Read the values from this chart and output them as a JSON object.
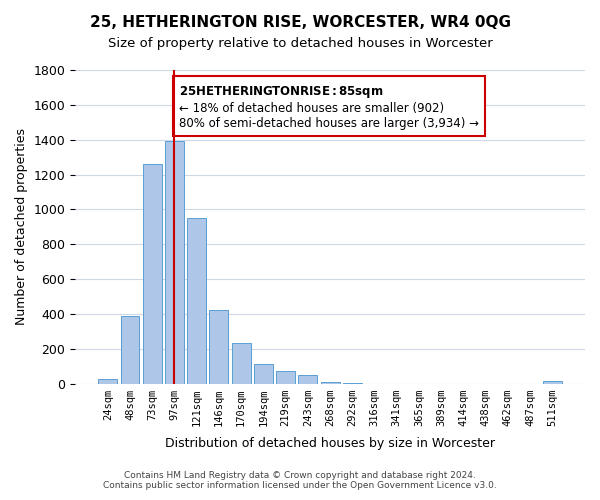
{
  "title": "25, HETHERINGTON RISE, WORCESTER, WR4 0QG",
  "subtitle": "Size of property relative to detached houses in Worcester",
  "xlabel": "Distribution of detached houses by size in Worcester",
  "ylabel": "Number of detached properties",
  "bar_labels": [
    "24sqm",
    "48sqm",
    "73sqm",
    "97sqm",
    "121sqm",
    "146sqm",
    "170sqm",
    "194sqm",
    "219sqm",
    "243sqm",
    "268sqm",
    "292sqm",
    "316sqm",
    "341sqm",
    "365sqm",
    "389sqm",
    "414sqm",
    "438sqm",
    "462sqm",
    "487sqm",
    "511sqm"
  ],
  "bar_values": [
    25,
    390,
    1260,
    1390,
    950,
    420,
    235,
    110,
    70,
    50,
    10,
    5,
    0,
    0,
    0,
    0,
    0,
    0,
    0,
    0,
    15
  ],
  "bar_color": "#aec6e8",
  "bar_edge_color": "#5a9fd4",
  "vline_x": 3,
  "vline_color": "#cc0000",
  "ylim": [
    0,
    1800
  ],
  "yticks": [
    0,
    200,
    400,
    600,
    800,
    1000,
    1200,
    1400,
    1600,
    1800
  ],
  "annotation_title": "25 HETHERINGTON RISE: 85sqm",
  "annotation_line1": "← 18% of detached houses are smaller (902)",
  "annotation_line2": "80% of semi-detached houses are larger (3,934) →",
  "annotation_box_color": "#ffffff",
  "annotation_box_edge_color": "#cc0000",
  "footer_line1": "Contains HM Land Registry data © Crown copyright and database right 2024.",
  "footer_line2": "Contains public sector information licensed under the Open Government Licence v3.0.",
  "background_color": "#ffffff",
  "grid_color": "#d0d8e8"
}
